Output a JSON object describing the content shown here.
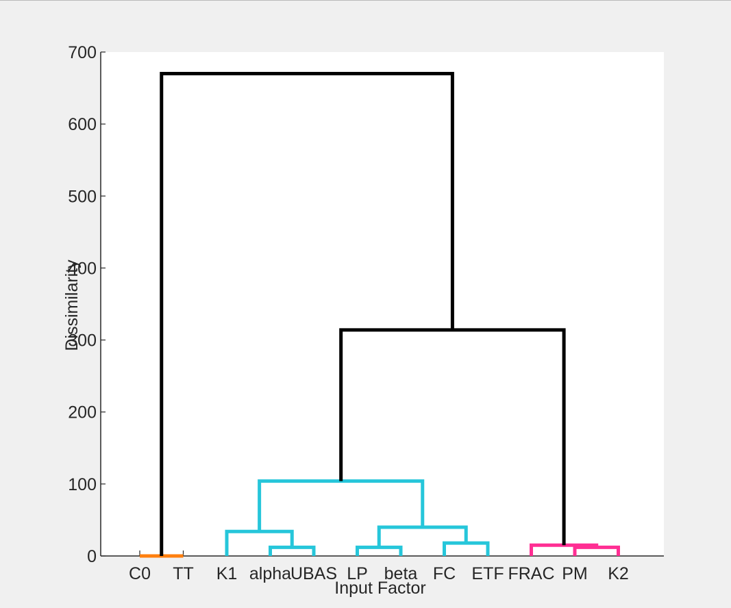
{
  "chart_data": {
    "type": "dendrogram",
    "title": "",
    "xlabel": "Input Factor",
    "ylabel": "Dissimilarity",
    "ylim": [
      0,
      700
    ],
    "yticks": [
      0,
      100,
      200,
      300,
      400,
      500,
      600,
      700
    ],
    "ytick_labels": [
      "0",
      "100",
      "200",
      "300",
      "400",
      "500",
      "600",
      "700"
    ],
    "grid": false,
    "leaves": [
      "C0",
      "TT",
      "K1",
      "alpha",
      "UBAS",
      "LP",
      "beta",
      "FC",
      "ETF",
      "FRAC",
      "PM",
      "K2"
    ],
    "merges": [
      {
        "left": "C0",
        "right": "TT",
        "height": 0,
        "color": "#ff7f0e"
      },
      {
        "left": "alpha",
        "right": "UBAS",
        "height": 12,
        "color": "#26c6da"
      },
      {
        "left": "LP",
        "right": "beta",
        "height": 12,
        "color": "#26c6da"
      },
      {
        "left": "FC",
        "right": "ETF",
        "height": 18,
        "color": "#26c6da"
      },
      {
        "left": "PM",
        "right": "K2",
        "height": 12,
        "color": "#ff2e93"
      },
      {
        "left": "FRAC",
        "right": "PM+K2",
        "height": 15,
        "color": "#ff2e93"
      },
      {
        "left": "K1",
        "right": "alpha+UBAS",
        "height": 34,
        "color": "#26c6da"
      },
      {
        "left": "LP+beta",
        "right": "FC+ETF",
        "height": 40,
        "color": "#26c6da"
      },
      {
        "left": "K1+alpha+UBAS",
        "right": "LP+beta+FC+ETF",
        "height": 104,
        "color": "#26c6da"
      },
      {
        "left": "cluster-cyan",
        "right": "cluster-magenta",
        "height": 314,
        "color": "#000000"
      },
      {
        "left": "C0+TT",
        "right": "cluster-cyan+magenta",
        "height": 670,
        "color": "#000000"
      }
    ]
  }
}
